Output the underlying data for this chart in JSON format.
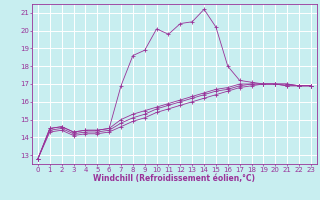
{
  "xlabel": "Windchill (Refroidissement éolien,°C)",
  "bg_color": "#c8eef0",
  "grid_color": "#aadddd",
  "line_color": "#993399",
  "xlim": [
    -0.5,
    23.5
  ],
  "ylim": [
    12.5,
    21.5
  ],
  "yticks": [
    13,
    14,
    15,
    16,
    17,
    18,
    19,
    20,
    21
  ],
  "xticks": [
    0,
    1,
    2,
    3,
    4,
    5,
    6,
    7,
    8,
    9,
    10,
    11,
    12,
    13,
    14,
    15,
    16,
    17,
    18,
    19,
    20,
    21,
    22,
    23
  ],
  "series": [
    [
      12.8,
      14.5,
      14.6,
      14.3,
      14.4,
      14.4,
      14.5,
      16.9,
      18.6,
      18.9,
      20.1,
      19.8,
      20.4,
      20.5,
      21.2,
      20.2,
      18.0,
      17.2,
      17.1,
      17.0,
      17.0,
      16.9,
      16.9,
      16.9
    ],
    [
      12.8,
      14.5,
      14.6,
      14.3,
      14.4,
      14.4,
      14.5,
      15.0,
      15.3,
      15.5,
      15.7,
      15.9,
      16.1,
      16.3,
      16.5,
      16.7,
      16.8,
      17.0,
      17.0,
      17.0,
      17.0,
      16.9,
      16.9,
      16.9
    ],
    [
      12.8,
      14.4,
      14.5,
      14.2,
      14.3,
      14.3,
      14.4,
      14.8,
      15.1,
      15.3,
      15.6,
      15.8,
      16.0,
      16.2,
      16.4,
      16.6,
      16.7,
      16.9,
      17.0,
      17.0,
      17.0,
      17.0,
      16.9,
      16.9
    ],
    [
      12.8,
      14.3,
      14.4,
      14.1,
      14.2,
      14.2,
      14.3,
      14.6,
      14.9,
      15.1,
      15.4,
      15.6,
      15.8,
      16.0,
      16.2,
      16.4,
      16.6,
      16.8,
      16.9,
      17.0,
      17.0,
      17.0,
      16.9,
      16.9
    ]
  ],
  "xlabel_fontsize": 5.5,
  "tick_fontsize": 5.0,
  "xlabel_bold": true
}
